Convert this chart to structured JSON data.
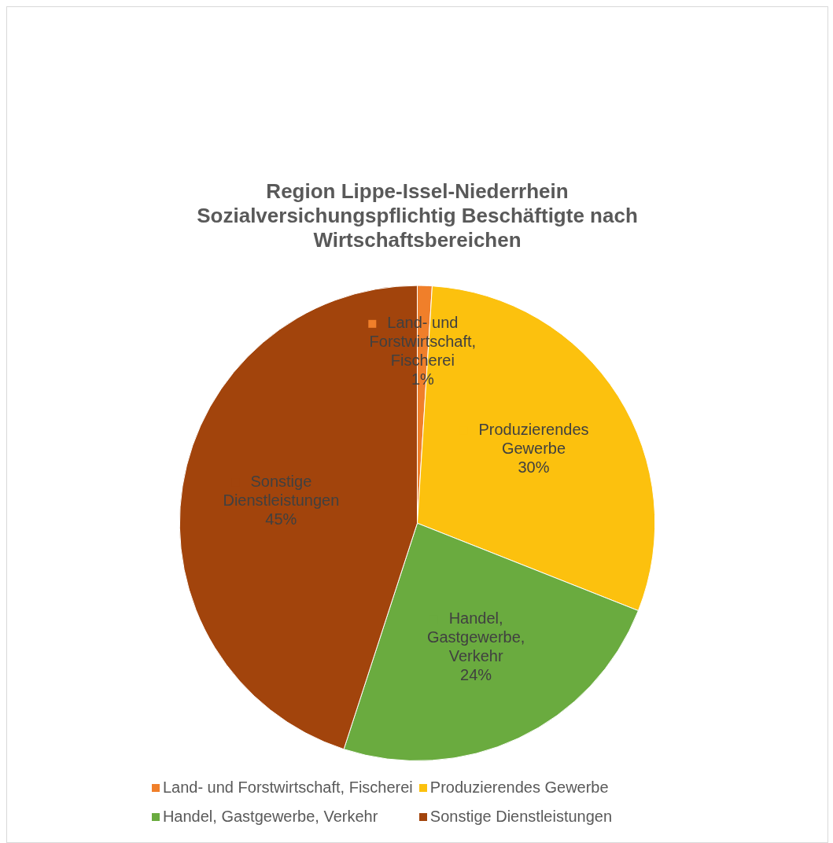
{
  "chart_data": {
    "type": "pie",
    "title": "Region Lippe-Issel-Niederrhein Sozialversichungspflichtig Beschäftigte nach Wirtschaftsbereichen",
    "categories": [
      "Land- und Forstwirtschaft, Fischerei",
      "Produzierendes Gewerbe",
      "Handel, Gastgewerbe, Verkehr",
      "Sonstige Dienstleistungen"
    ],
    "values": [
      1,
      30,
      24,
      45
    ],
    "colors": [
      "#f07f2a",
      "#fcc10e",
      "#6aab3f",
      "#a2440c"
    ],
    "value_labels": [
      "1%",
      "30%",
      "24%",
      "45%"
    ],
    "legend": "bottom"
  }
}
